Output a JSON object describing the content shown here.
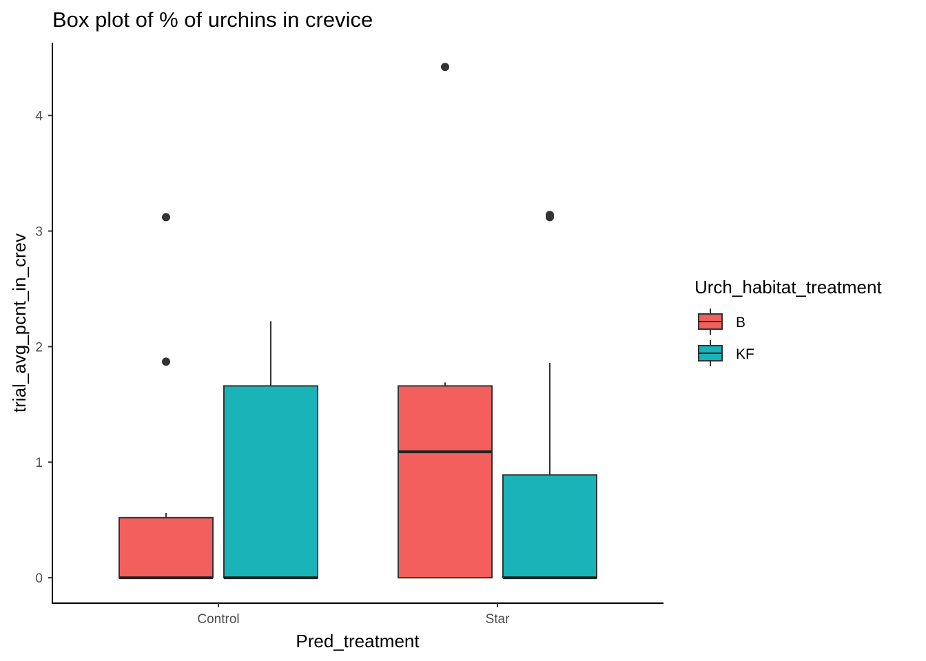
{
  "chart_data": {
    "type": "box",
    "title": "Box plot of % of urchins in crevice",
    "xlabel": "Pred_treatment",
    "ylabel": "trial_avg_pcnt_in_crev",
    "categories": [
      "Control",
      "Star"
    ],
    "ylim": [
      -0.22,
      4.63
    ],
    "yticks": [
      0,
      1,
      2,
      3,
      4
    ],
    "legend": {
      "title": "Urch_habitat_treatment",
      "position": "right"
    },
    "grid": false,
    "series": [
      {
        "name": "B",
        "color": "#F25F5C",
        "boxes": [
          {
            "category": "Control",
            "whisker_low": 0,
            "q1": 0,
            "median": 0,
            "q3": 0.52,
            "whisker_high": 0.56,
            "outliers": [
              1.87,
              3.12
            ]
          },
          {
            "category": "Star",
            "whisker_low": 0,
            "q1": 0,
            "median": 1.09,
            "q3": 1.66,
            "whisker_high": 1.69,
            "outliers": [
              4.42
            ]
          }
        ]
      },
      {
        "name": "KF",
        "color": "#1AB4B8",
        "boxes": [
          {
            "category": "Control",
            "whisker_low": 0,
            "q1": 0,
            "median": 0,
            "q3": 1.66,
            "whisker_high": 2.22,
            "outliers": []
          },
          {
            "category": "Star",
            "whisker_low": 0,
            "q1": 0,
            "median": 0,
            "q3": 0.89,
            "whisker_high": 1.86,
            "outliers": [
              3.12,
              3.14
            ]
          }
        ]
      }
    ]
  }
}
